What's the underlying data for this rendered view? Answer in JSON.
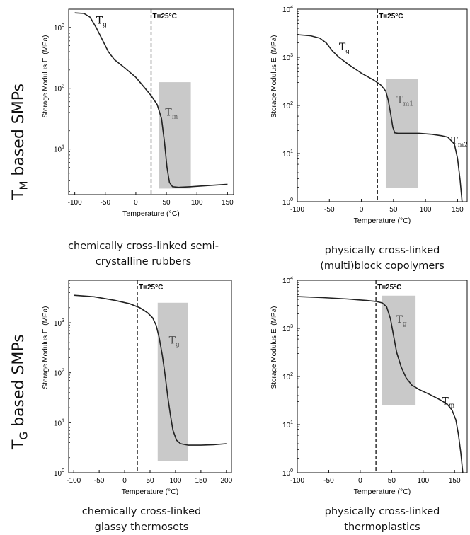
{
  "row_labels": [
    {
      "main": "T",
      "sub": "M",
      "rest": " based SMPs"
    },
    {
      "main": "T",
      "sub": "G",
      "rest": " based SMPs"
    }
  ],
  "captions": [
    [
      "chemically cross-linked semi-",
      "crystalline rubbers"
    ],
    [
      "physically cross-linked",
      "(multi)block copolymers"
    ],
    [
      "chemically cross-linked",
      "glassy thermosets"
    ],
    [
      "physically cross-linked",
      "thermoplastics"
    ]
  ],
  "chart_data": [
    {
      "type": "line",
      "xlabel": "Temperature (°C)",
      "ylabel": "Storage Modulus E' (MPa)",
      "xlim": [
        -110,
        160
      ],
      "ylim_log10": [
        0.25,
        3.3
      ],
      "yscale": "log",
      "xticks": [
        -100,
        -50,
        0,
        50,
        100,
        150
      ],
      "yticks": [
        {
          "exp": 1,
          "label": "10",
          "sup": "1"
        },
        {
          "exp": 2,
          "label": "10",
          "sup": "2"
        },
        {
          "exp": 3,
          "label": "10",
          "sup": "3"
        }
      ],
      "vline": {
        "x": 25,
        "label": "T=25°C"
      },
      "band": {
        "x0": 38,
        "x1": 90,
        "ylog0": 0.35,
        "ylog1": 2.1
      },
      "annotations": [
        {
          "main": "T",
          "sub": "g",
          "x": -65,
          "ylog": 3.06,
          "color": "#111"
        },
        {
          "main": "T",
          "sub": "m",
          "x": 48,
          "ylog": 1.55,
          "color": "#555"
        }
      ],
      "series": [
        {
          "points": [
            [
              -100,
              3.24
            ],
            [
              -85,
              3.23
            ],
            [
              -75,
              3.17
            ],
            [
              -65,
              3.0
            ],
            [
              -55,
              2.8
            ],
            [
              -45,
              2.6
            ],
            [
              -35,
              2.47
            ],
            [
              -20,
              2.35
            ],
            [
              0,
              2.18
            ],
            [
              15,
              2.0
            ],
            [
              25,
              1.88
            ],
            [
              35,
              1.73
            ],
            [
              42,
              1.5
            ],
            [
              47,
              1.1
            ],
            [
              51,
              0.7
            ],
            [
              55,
              0.45
            ],
            [
              60,
              0.38
            ],
            [
              70,
              0.37
            ],
            [
              90,
              0.38
            ],
            [
              120,
              0.4
            ],
            [
              150,
              0.42
            ]
          ]
        }
      ]
    },
    {
      "type": "line",
      "xlabel": "Temperature (°C)",
      "ylabel": "Storage Modulus E' (MPa)",
      "xlim": [
        -100,
        165
      ],
      "ylim_log10": [
        0,
        4
      ],
      "yscale": "log",
      "xticks": [
        -100,
        -50,
        0,
        50,
        100,
        150
      ],
      "yticks": [
        {
          "exp": 0,
          "label": "10",
          "sup": "0"
        },
        {
          "exp": 1,
          "label": "10",
          "sup": "1"
        },
        {
          "exp": 2,
          "label": "10",
          "sup": "2"
        },
        {
          "exp": 3,
          "label": "10",
          "sup": "3"
        },
        {
          "exp": 4,
          "label": "10",
          "sup": "4"
        }
      ],
      "vline": {
        "x": 25,
        "label": "T=25°C"
      },
      "band": {
        "x0": 38,
        "x1": 88,
        "ylog0": 0.28,
        "ylog1": 2.55
      },
      "annotations": [
        {
          "main": "T",
          "sub": "g",
          "x": -35,
          "ylog": 3.15,
          "color": "#111"
        },
        {
          "main": "T",
          "sub": "m1",
          "x": 55,
          "ylog": 2.05,
          "color": "#555"
        },
        {
          "main": "T",
          "sub": "m2",
          "x": 140,
          "ylog": 1.2,
          "color": "#111"
        }
      ],
      "series": [
        {
          "points": [
            [
              -100,
              3.47
            ],
            [
              -80,
              3.45
            ],
            [
              -65,
              3.4
            ],
            [
              -55,
              3.3
            ],
            [
              -45,
              3.13
            ],
            [
              -35,
              3.0
            ],
            [
              -20,
              2.85
            ],
            [
              0,
              2.67
            ],
            [
              20,
              2.52
            ],
            [
              30,
              2.43
            ],
            [
              38,
              2.3
            ],
            [
              42,
              2.1
            ],
            [
              46,
              1.8
            ],
            [
              49,
              1.55
            ],
            [
              52,
              1.43
            ],
            [
              57,
              1.42
            ],
            [
              70,
              1.42
            ],
            [
              90,
              1.42
            ],
            [
              110,
              1.4
            ],
            [
              125,
              1.37
            ],
            [
              135,
              1.34
            ],
            [
              145,
              1.2
            ],
            [
              150,
              0.9
            ],
            [
              154,
              0.45
            ],
            [
              157,
              0.0
            ]
          ]
        }
      ]
    },
    {
      "type": "line",
      "xlabel": "Temperature (°C)",
      "ylabel": "Storage Modulus E' (MPa)",
      "xlim": [
        -110,
        210
      ],
      "ylim_log10": [
        0,
        3.85
      ],
      "yscale": "log",
      "xticks": [
        -100,
        -50,
        0,
        50,
        100,
        150,
        200
      ],
      "yticks": [
        {
          "exp": 0,
          "label": "10",
          "sup": "0"
        },
        {
          "exp": 1,
          "label": "10",
          "sup": "1"
        },
        {
          "exp": 2,
          "label": "10",
          "sup": "2"
        },
        {
          "exp": 3,
          "label": "10",
          "sup": "3"
        }
      ],
      "vline": {
        "x": 25,
        "label": "T=25°C"
      },
      "band": {
        "x0": 65,
        "x1": 125,
        "ylog0": 0.23,
        "ylog1": 3.4
      },
      "annotations": [
        {
          "main": "T",
          "sub": "g",
          "x": 87,
          "ylog": 2.58,
          "color": "#555"
        }
      ],
      "series": [
        {
          "points": [
            [
              -100,
              3.55
            ],
            [
              -60,
              3.52
            ],
            [
              -20,
              3.45
            ],
            [
              10,
              3.38
            ],
            [
              30,
              3.3
            ],
            [
              45,
              3.2
            ],
            [
              55,
              3.1
            ],
            [
              62,
              2.95
            ],
            [
              68,
              2.7
            ],
            [
              74,
              2.35
            ],
            [
              79,
              2.0
            ],
            [
              85,
              1.5
            ],
            [
              90,
              1.15
            ],
            [
              95,
              0.85
            ],
            [
              102,
              0.65
            ],
            [
              110,
              0.58
            ],
            [
              125,
              0.55
            ],
            [
              150,
              0.55
            ],
            [
              175,
              0.56
            ],
            [
              200,
              0.58
            ]
          ]
        }
      ]
    },
    {
      "type": "line",
      "xlabel": "Temperature (°C)",
      "ylabel": "Storage Modulus E' (MPa)",
      "xlim": [
        -100,
        170
      ],
      "ylim_log10": [
        0,
        4
      ],
      "yscale": "log",
      "xticks": [
        -100,
        -50,
        0,
        50,
        100,
        150
      ],
      "yticks": [
        {
          "exp": 0,
          "label": "10",
          "sup": "0"
        },
        {
          "exp": 1,
          "label": "10",
          "sup": "1"
        },
        {
          "exp": 2,
          "label": "10",
          "sup": "2"
        },
        {
          "exp": 3,
          "label": "10",
          "sup": "3"
        },
        {
          "exp": 4,
          "label": "10",
          "sup": "4"
        }
      ],
      "vline": {
        "x": 25,
        "label": "T=25°C"
      },
      "band": {
        "x0": 35,
        "x1": 88,
        "ylog0": 1.4,
        "ylog1": 3.68
      },
      "annotations": [
        {
          "main": "T",
          "sub": "g",
          "x": 57,
          "ylog": 3.12,
          "color": "#555"
        },
        {
          "main": "T",
          "sub": "m",
          "x": 130,
          "ylog": 1.42,
          "color": "#111"
        }
      ],
      "series": [
        {
          "points": [
            [
              -100,
              3.66
            ],
            [
              -60,
              3.64
            ],
            [
              -20,
              3.61
            ],
            [
              10,
              3.58
            ],
            [
              25,
              3.56
            ],
            [
              35,
              3.53
            ],
            [
              42,
              3.45
            ],
            [
              48,
              3.2
            ],
            [
              53,
              2.85
            ],
            [
              58,
              2.5
            ],
            [
              65,
              2.2
            ],
            [
              73,
              1.97
            ],
            [
              82,
              1.82
            ],
            [
              95,
              1.72
            ],
            [
              110,
              1.63
            ],
            [
              125,
              1.53
            ],
            [
              138,
              1.43
            ],
            [
              146,
              1.3
            ],
            [
              152,
              1.1
            ],
            [
              156,
              0.8
            ],
            [
              160,
              0.4
            ],
            [
              163,
              0.0
            ]
          ]
        }
      ]
    }
  ]
}
